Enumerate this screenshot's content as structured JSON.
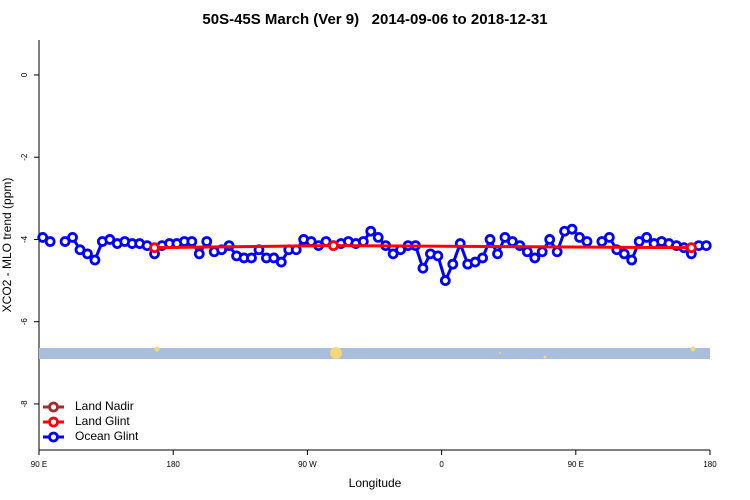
{
  "chart_data": {
    "type": "line",
    "title": "50S-45S March (Ver 9)   2014-09-06 to 2018-12-31",
    "xlabel": "Longitude",
    "ylabel": "XCO2 - MLO trend (ppm)",
    "xlim": [
      90,
      540
    ],
    "ylim": [
      -9.12,
      0.85
    ],
    "xticks": [
      {
        "value": 90,
        "label": "90 E"
      },
      180,
      {
        "value": 270,
        "label": "90 W"
      },
      {
        "value": 360,
        "label": "0"
      },
      {
        "value": 450,
        "label": "90 E"
      },
      {
        "value": 540,
        "label": "180"
      }
    ],
    "yticks": [
      0,
      -2,
      -4,
      -6,
      -8
    ],
    "legend": "bottom-left",
    "series": [
      {
        "name": "Land Nadir",
        "color": "#a52a2a",
        "x": [],
        "values": []
      },
      {
        "name": "Land Glint",
        "color": "#ff0000",
        "x": [
          167.5,
          287.5,
          527.5
        ],
        "values": [
          -4.2,
          -4.15,
          -4.2
        ]
      },
      {
        "name": "Ocean Glint",
        "color": "#0000ff",
        "x": [
          92.5,
          97.5,
          102.5,
          107.5,
          112.5,
          117.5,
          122.5,
          127.5,
          132.5,
          137.5,
          142.5,
          147.5,
          152.5,
          157.5,
          162.5,
          167.5,
          172.5,
          177.5,
          182.5,
          187.5,
          192.5,
          197.5,
          202.5,
          207.5,
          212.5,
          217.5,
          222.5,
          227.5,
          232.5,
          237.5,
          242.5,
          247.5,
          252.5,
          257.5,
          262.5,
          267.5,
          272.5,
          277.5,
          282.5,
          287.5,
          292.5,
          297.5,
          302.5,
          307.5,
          312.5,
          317.5,
          322.5,
          327.5,
          332.5,
          337.5,
          342.5,
          347.5,
          352.5,
          357.5,
          362.5,
          367.5,
          372.5,
          377.5,
          382.5,
          387.5,
          392.5,
          397.5,
          402.5,
          407.5,
          412.5,
          417.5,
          422.5,
          427.5,
          432.5,
          437.5,
          442.5,
          447.5,
          452.5,
          457.5,
          462.5,
          467.5,
          472.5,
          477.5,
          482.5,
          487.5,
          492.5,
          497.5,
          502.5,
          507.5,
          512.5,
          517.5,
          522.5,
          527.5,
          532.5,
          537.5
        ],
        "values": [
          -3.95,
          -4.05,
          null,
          -4.05,
          -3.95,
          -4.25,
          -4.35,
          -4.5,
          -4.05,
          -4.0,
          -4.1,
          -4.05,
          -4.1,
          -4.1,
          -4.15,
          -4.35,
          -4.15,
          -4.1,
          -4.1,
          -4.05,
          -4.05,
          -4.35,
          -4.05,
          -4.3,
          -4.25,
          -4.15,
          -4.4,
          -4.45,
          -4.45,
          -4.25,
          -4.45,
          -4.45,
          -4.55,
          -4.25,
          -4.25,
          -4.0,
          -4.05,
          -4.15,
          -4.05,
          -4.15,
          -4.1,
          -4.05,
          -4.1,
          -4.05,
          -3.8,
          -3.95,
          -4.15,
          -4.35,
          -4.25,
          -4.15,
          -4.15,
          -4.7,
          -4.35,
          -4.4,
          -5.0,
          -4.6,
          -4.1,
          -4.6,
          -4.55,
          -4.45,
          -4.0,
          -4.35,
          -3.95,
          -4.05,
          -4.15,
          -4.3,
          -4.45,
          -4.3,
          -4.0,
          -4.3,
          -3.8,
          -3.75,
          -3.95,
          -4.05,
          null,
          -4.05,
          -3.95,
          -4.25,
          -4.35,
          -4.5,
          -4.05,
          -3.95,
          -4.1,
          -4.05,
          -4.1,
          -4.15,
          -4.2,
          -4.35,
          -4.15,
          -4.15
        ]
      }
    ]
  }
}
